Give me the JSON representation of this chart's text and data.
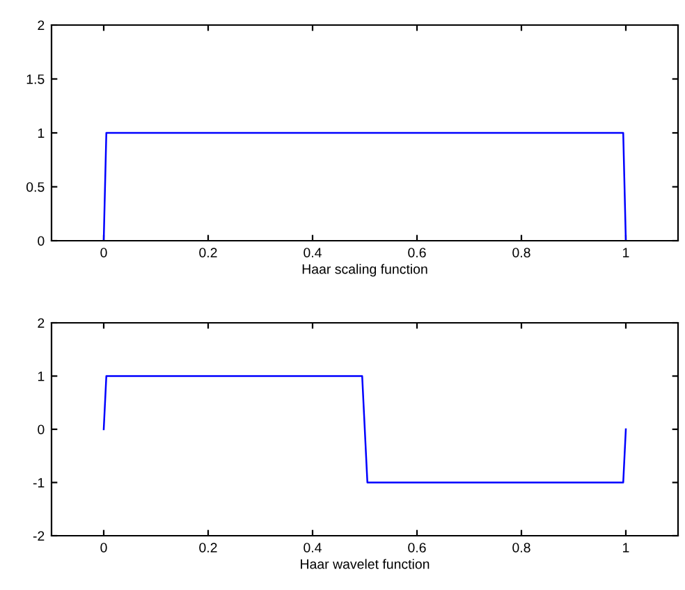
{
  "chart_data": [
    {
      "type": "line",
      "xlabel": "Haar scaling function",
      "x": [
        0,
        0.005,
        0.995,
        1
      ],
      "series": [
        {
          "color": "#0000ff",
          "values": [
            0,
            1,
            1,
            0
          ]
        }
      ],
      "xlim": [
        -0.1,
        1.1
      ],
      "xticks": [
        0,
        0.2,
        0.4,
        0.6,
        0.8,
        1
      ],
      "ylim": [
        0,
        2
      ],
      "yticks": [
        0,
        0.5,
        1,
        1.5,
        2
      ],
      "grid": false,
      "legend": false
    },
    {
      "type": "line",
      "xlabel": "Haar wavelet function",
      "x": [
        0,
        0.005,
        0.495,
        0.505,
        0.995,
        1
      ],
      "series": [
        {
          "color": "#0000ff",
          "values": [
            0,
            1,
            1,
            -1,
            -1,
            0
          ]
        }
      ],
      "xlim": [
        -0.1,
        1.1
      ],
      "xticks": [
        0,
        0.2,
        0.4,
        0.6,
        0.8,
        1
      ],
      "ylim": [
        -2,
        2
      ],
      "yticks": [
        -2,
        -1,
        0,
        1,
        2
      ],
      "grid": false,
      "legend": false
    }
  ]
}
